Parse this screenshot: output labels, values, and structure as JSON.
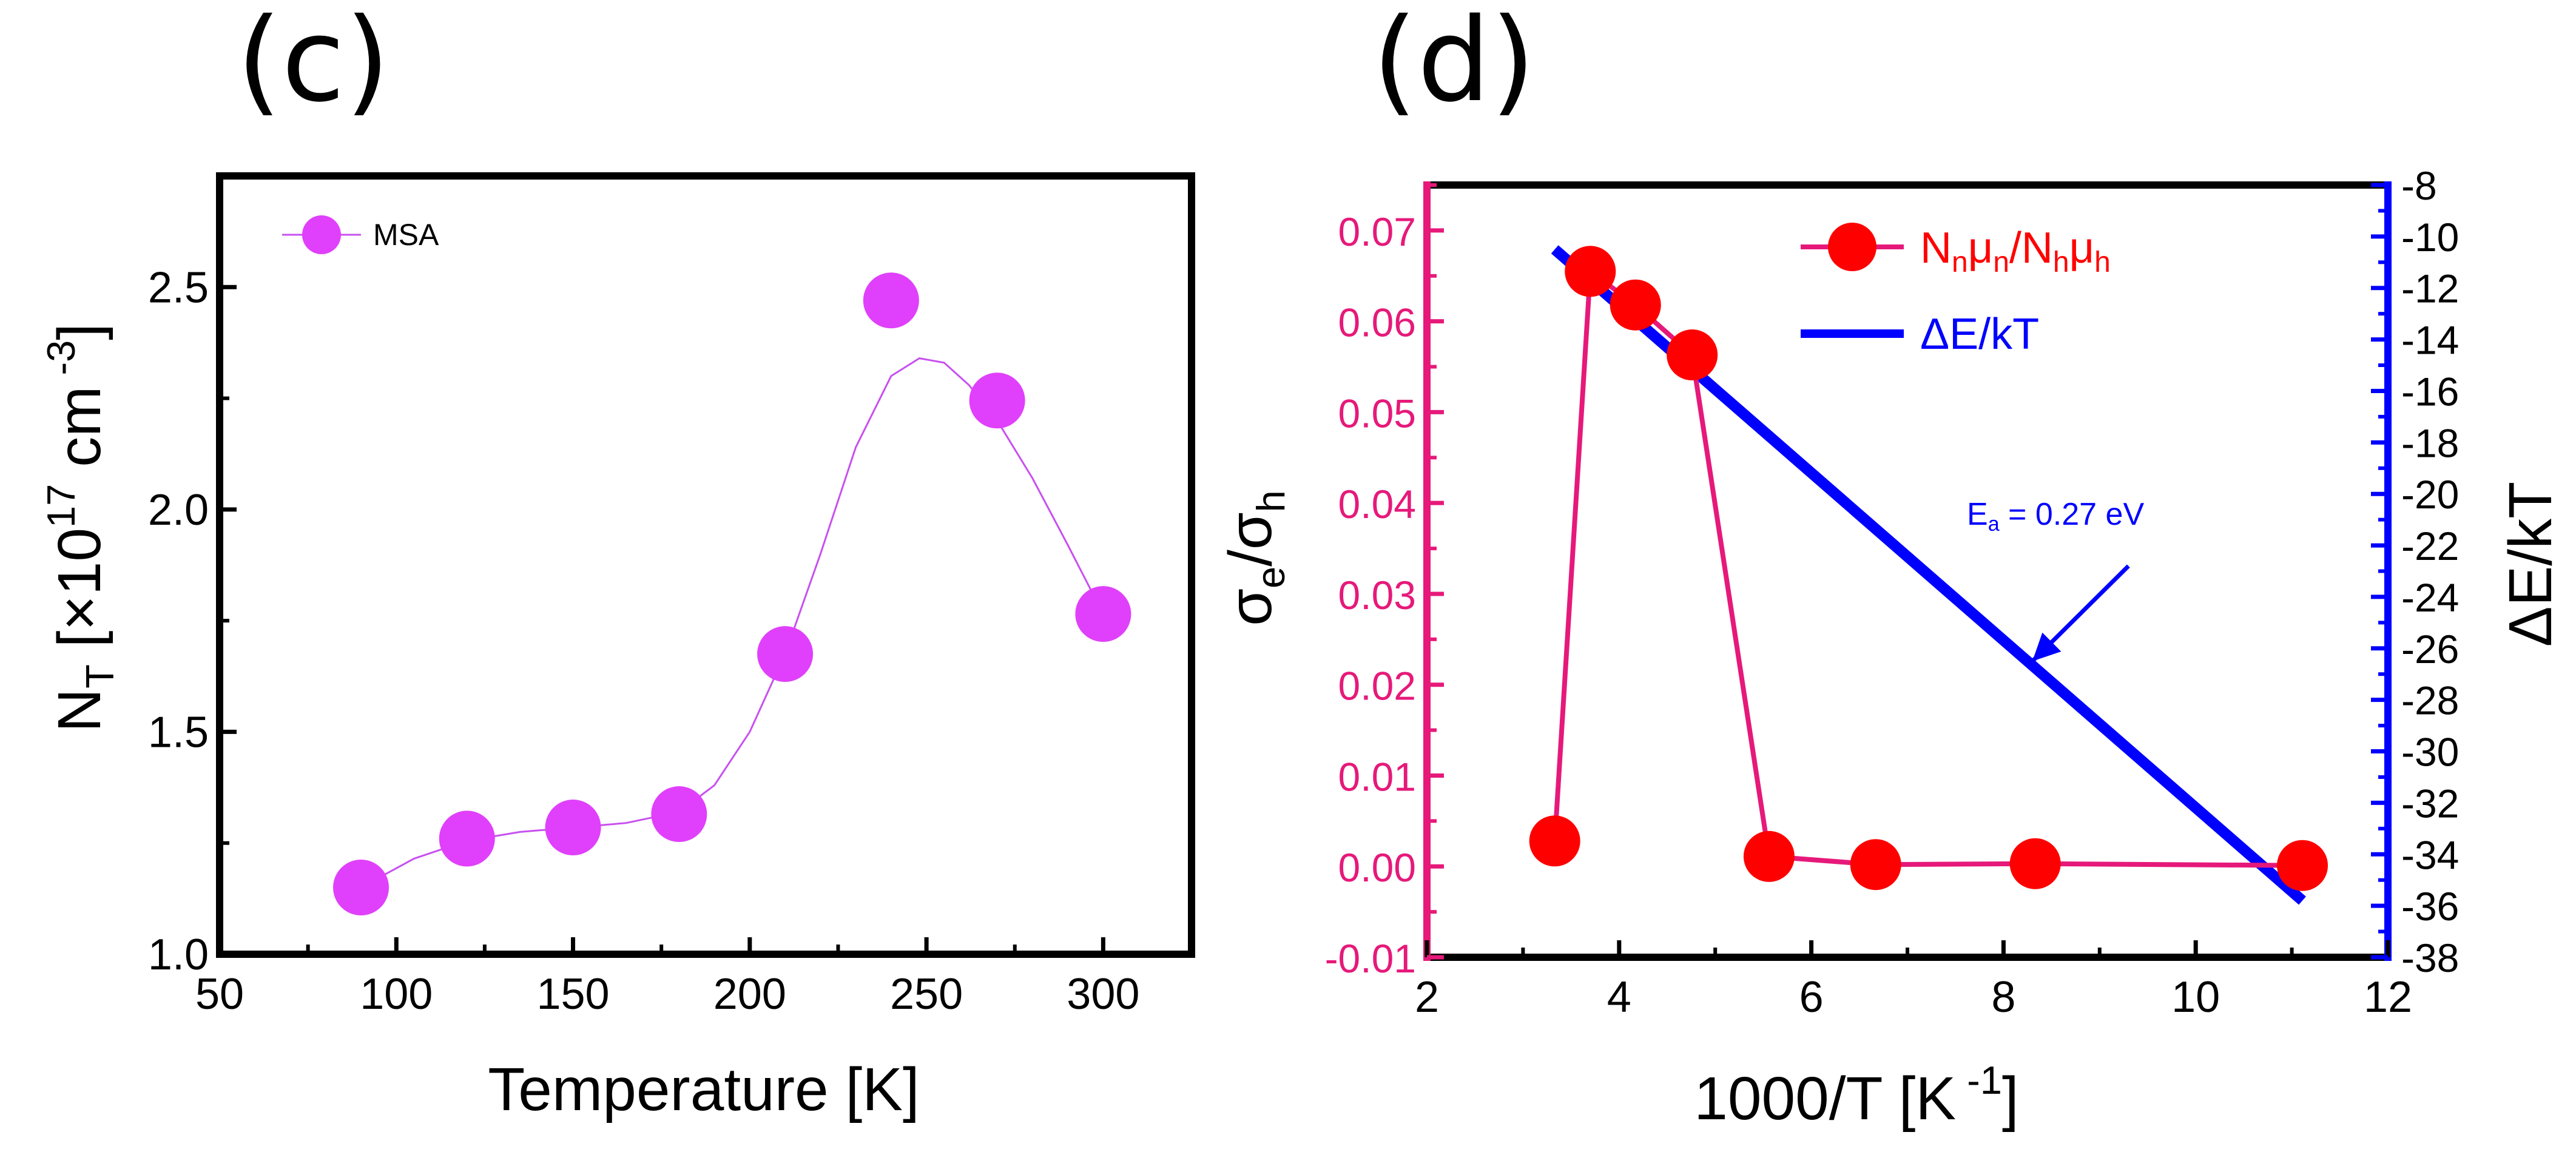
{
  "chart_data": [
    {
      "panel_label": "(c)",
      "type": "scatter",
      "xlabel": "Temperature [K]",
      "ylabel": {
        "main": "N",
        "sub": "T",
        "bracket": " [×10",
        "sup": "17",
        "unit": " cm",
        "unitsup": " -3",
        "close": "]"
      },
      "xlim": [
        50,
        325
      ],
      "ylim": [
        1.0,
        2.75
      ],
      "x_ticks": [
        50,
        100,
        150,
        200,
        250,
        300
      ],
      "x_tick_labels": [
        "50",
        "100",
        "150",
        "200",
        "250",
        "300"
      ],
      "y_ticks": [
        1.0,
        1.5,
        2.0,
        2.5
      ],
      "y_tick_labels": [
        "1.0",
        "1.5",
        "2.0",
        "2.5"
      ],
      "legend": {
        "position": "top-left",
        "entries": [
          {
            "label": "MSA"
          }
        ]
      },
      "series": [
        {
          "name": "MSA",
          "color": "#e040fb",
          "line_color": "#c850f0",
          "x": [
            90,
            120,
            150,
            180,
            210,
            240,
            270,
            300
          ],
          "y": [
            1.15,
            1.26,
            1.285,
            1.315,
            1.675,
            2.47,
            2.245,
            1.765
          ],
          "fit_curve": {
            "x": [
              90,
              105,
              120,
              135,
              150,
              165,
              180,
              190,
              200,
              210,
              220,
              230,
              240,
              248,
              255,
              262,
              270,
              280,
              290,
              300
            ],
            "y": [
              1.15,
              1.215,
              1.255,
              1.275,
              1.285,
              1.295,
              1.32,
              1.38,
              1.5,
              1.675,
              1.9,
              2.14,
              2.3,
              2.34,
              2.33,
              2.28,
              2.2,
              2.07,
              1.92,
              1.765
            ]
          }
        }
      ]
    },
    {
      "panel_label": "(d)",
      "type": "line",
      "xlabel": "1000/T [K -1]",
      "xlabel_parts": {
        "main": "1000/T [K",
        "sup": " -1",
        "close": "]"
      },
      "ylabel_left": {
        "a": "σ",
        "asub": "e",
        "slash": "/σ",
        "bsub": "h"
      },
      "ylabel_right": "ΔE/kT",
      "xlim": [
        2,
        12
      ],
      "ylim_left": [
        -0.01,
        0.075
      ],
      "ylim_right": [
        -38,
        -8
      ],
      "x_ticks": [
        2,
        4,
        6,
        8,
        10,
        12
      ],
      "x_tick_labels": [
        "2",
        "4",
        "6",
        "8",
        "10",
        "12"
      ],
      "y_left_ticks": [
        -0.01,
        0.0,
        0.01,
        0.02,
        0.03,
        0.04,
        0.05,
        0.06,
        0.07
      ],
      "y_left_tick_labels": [
        "-0.01",
        "0.00",
        "0.01",
        "0.02",
        "0.03",
        "0.04",
        "0.05",
        "0.06",
        "0.07"
      ],
      "y_right_ticks": [
        -38,
        -36,
        -34,
        -32,
        -30,
        -28,
        -26,
        -24,
        -22,
        -20,
        -18,
        -16,
        -14,
        -12,
        -10,
        -8
      ],
      "y_right_tick_labels": [
        "-38",
        "-36",
        "-34",
        "-32",
        "-30",
        "-28",
        "-26",
        "-24",
        "-22",
        "-20",
        "-18",
        "-16",
        "-14",
        "-12",
        "-10",
        "-8"
      ],
      "left_axis_color": "#e6197a",
      "right_axis_color": "#0000ff",
      "legend": {
        "position": "top-right",
        "entries": [
          {
            "label": "NnμnNhμh",
            "parts": {
              "a": "N",
              "asub": "n",
              "b": "μ",
              "bsub": "n",
              "slash": "/N",
              "csub": "h",
              "d": "μ",
              "dsub": "h"
            },
            "color": "#ff0000"
          },
          {
            "label": "ΔE/kT",
            "color": "#0000ff"
          }
        ]
      },
      "series": [
        {
          "name": "NnμnNhμh",
          "axis": "left",
          "color": "#ff0000",
          "line_color": "#e6197a",
          "x": [
            3.33,
            3.7,
            4.17,
            4.76,
            5.56,
            6.67,
            8.33,
            11.11
          ],
          "y": [
            0.0028,
            0.0655,
            0.0618,
            0.0563,
            0.0011,
            0.0002,
            0.0003,
            0.0001
          ]
        },
        {
          "name": "ΔE/kT",
          "axis": "right",
          "color": "#0000ff",
          "x": [
            3.33,
            11.11
          ],
          "y": [
            -10.5,
            -35.8
          ]
        }
      ],
      "annotation": {
        "main": "E",
        "sub": "a",
        "rest": " = 0.27 eV",
        "color": "#0000ff",
        "arrow_to": [
          8.3,
          -26.5
        ],
        "arrow_from": [
          9.3,
          -22.8
        ]
      }
    }
  ]
}
